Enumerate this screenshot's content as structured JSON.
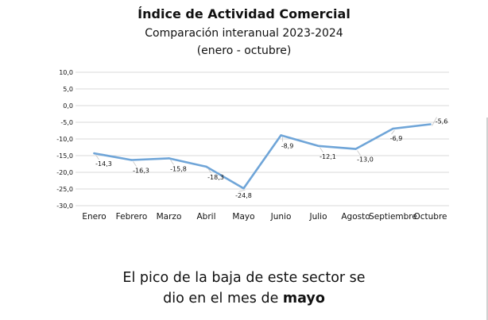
{
  "chart_data": {
    "type": "line",
    "title": "Índice de Actividad Comercial",
    "subtitle_lines": [
      "Comparación interanual 2023-2024",
      "(enero - octubre)"
    ],
    "categories": [
      "Enero",
      "Febrero",
      "Marzo",
      "Abril",
      "Mayo",
      "Junio",
      "Julio",
      "Agosto",
      "Septiembre",
      "Octubre"
    ],
    "series": [
      {
        "values": [
          -14.3,
          -16.3,
          -15.8,
          -18.3,
          -24.8,
          -8.9,
          -12.1,
          -13.0,
          -6.9,
          -5.6
        ],
        "labels": [
          "-14,3",
          "-16,3",
          "-15,8",
          "-18,3",
          "-24,8",
          "-8,9",
          "-12,1",
          "-13,0",
          "-6,9",
          "-5,6"
        ]
      }
    ],
    "ylim": [
      -30,
      10
    ],
    "yticks": [
      "10,0",
      "5,0",
      "0,0",
      "-5,0",
      "-10,0",
      "-15,0",
      "-20,0",
      "-25,0",
      "-30,0"
    ],
    "grid": true,
    "colors": {
      "line": "#6fa5d8",
      "grid": "#d9d9d9",
      "axis_text": "#111111"
    }
  },
  "caption": {
    "line1": "El pico de la baja de este sector se",
    "line2_prefix": "dio en el mes de ",
    "line2_bold": "mayo"
  }
}
